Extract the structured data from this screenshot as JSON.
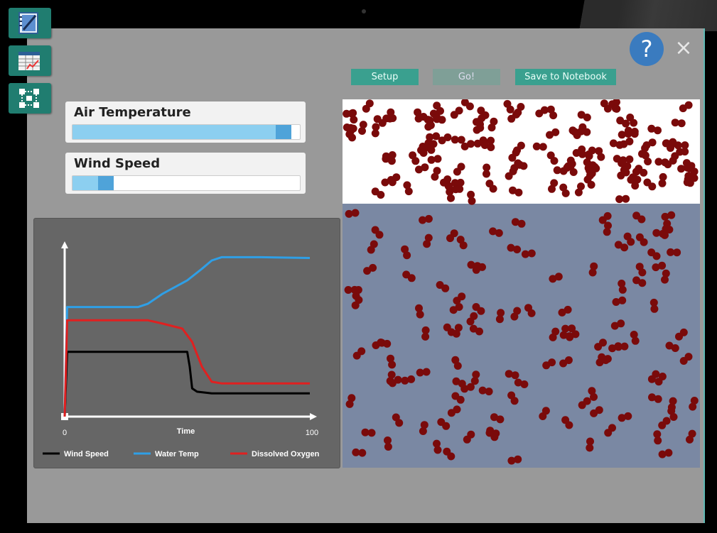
{
  "toolbar": {
    "items": [
      {
        "name": "notebook",
        "icon": "notebook-icon"
      },
      {
        "name": "data-table",
        "icon": "table-graph-icon"
      },
      {
        "name": "model",
        "icon": "model-icon"
      }
    ]
  },
  "header": {
    "help_label": "?",
    "close_label": "×",
    "buttons": {
      "setup": "Setup",
      "go": "Go!",
      "save": "Save to Notebook"
    }
  },
  "controls": {
    "air_temperature": {
      "label": "Air Temperature",
      "level": 0.96
    },
    "wind_speed": {
      "label": "Wind Speed",
      "level": 0.12
    }
  },
  "chart_data": {
    "type": "line",
    "xlabel": "Time",
    "ylabel": "",
    "xlim": [
      0,
      100
    ],
    "x_ticks": [
      "0",
      "100"
    ],
    "legend_position": "bottom",
    "series": [
      {
        "name": "Wind Speed",
        "color": "#000000",
        "points": [
          [
            0,
            0
          ],
          [
            1,
            0.39
          ],
          [
            3,
            0.39
          ],
          [
            20,
            0.39
          ],
          [
            40,
            0.39
          ],
          [
            50,
            0.39
          ],
          [
            51,
            0.3
          ],
          [
            52,
            0.17
          ],
          [
            54,
            0.15
          ],
          [
            60,
            0.14
          ],
          [
            80,
            0.14
          ],
          [
            100,
            0.14
          ]
        ]
      },
      {
        "name": "Water Temp",
        "color": "#2f9fe6",
        "points": [
          [
            0,
            0
          ],
          [
            1,
            0.66
          ],
          [
            3,
            0.66
          ],
          [
            20,
            0.66
          ],
          [
            30,
            0.66
          ],
          [
            34,
            0.68
          ],
          [
            40,
            0.74
          ],
          [
            50,
            0.82
          ],
          [
            56,
            0.89
          ],
          [
            60,
            0.94
          ],
          [
            64,
            0.96
          ],
          [
            80,
            0.96
          ],
          [
            100,
            0.955
          ]
        ]
      },
      {
        "name": "Dissolved Oxygen",
        "color": "#e02020",
        "points": [
          [
            0,
            0
          ],
          [
            1,
            0.58
          ],
          [
            3,
            0.58
          ],
          [
            20,
            0.58
          ],
          [
            34,
            0.58
          ],
          [
            40,
            0.56
          ],
          [
            48,
            0.53
          ],
          [
            52,
            0.45
          ],
          [
            56,
            0.3
          ],
          [
            60,
            0.21
          ],
          [
            64,
            0.2
          ],
          [
            80,
            0.2
          ],
          [
            100,
            0.2
          ]
        ]
      }
    ]
  },
  "simulation": {
    "air_color": "#ffffff",
    "water_color": "#7a88a3",
    "molecule_color": "#7a0a0a",
    "air_molecule_count": 130,
    "water_molecule_count": 120
  }
}
